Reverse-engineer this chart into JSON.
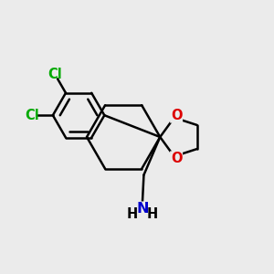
{
  "bg_color": "#ebebeb",
  "bond_color": "#000000",
  "line_width": 1.8,
  "atom_colors": {
    "Cl": "#00aa00",
    "O": "#dd0000",
    "N": "#0000cc"
  },
  "font_size": 10.5
}
